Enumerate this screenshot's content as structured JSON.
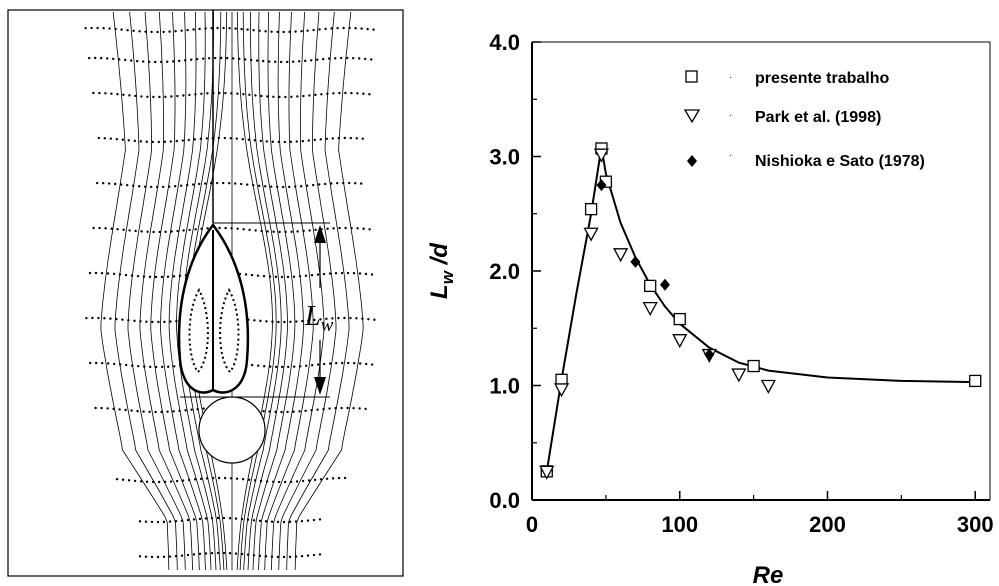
{
  "chart_data": [
    {
      "type": "diagram",
      "annotation": "L",
      "annotation_subscript": "w"
    },
    {
      "type": "scatter",
      "xlabel": "Re",
      "ylabel": "L",
      "ylabel_subscript": "w",
      "ylabel_suffix": " /d",
      "xlim": [
        0,
        310
      ],
      "ylim": [
        0,
        4.0
      ],
      "x_ticks": [
        0,
        100,
        200,
        300
      ],
      "x_tick_labels": [
        "0",
        "100",
        "200",
        "300"
      ],
      "y_ticks": [
        0,
        1,
        2,
        3,
        4
      ],
      "y_tick_labels": [
        "0.0",
        "1.0",
        "2.0",
        "3.0",
        "4.0"
      ],
      "grid": false,
      "legend_position": "top-right",
      "series": [
        {
          "name": "presente trabalho",
          "marker": "square-open",
          "x": [
            10,
            20,
            40,
            47,
            50,
            80,
            100,
            150,
            300
          ],
          "y": [
            0.25,
            1.05,
            2.54,
            3.07,
            2.78,
            1.87,
            1.58,
            1.17,
            1.04
          ]
        },
        {
          "name": "Park et al. (1998)",
          "marker": "triangle-down-open",
          "x": [
            10,
            20,
            40,
            47,
            60,
            80,
            100,
            120,
            140,
            160
          ],
          "y": [
            0.25,
            0.97,
            2.33,
            3.02,
            2.15,
            1.68,
            1.4,
            1.27,
            1.1,
            1.0
          ]
        },
        {
          "name": "Nishioka e Sato (1978)",
          "marker": "diamond-filled",
          "x": [
            47,
            70,
            90,
            120
          ],
          "y": [
            2.75,
            2.08,
            1.88,
            1.27
          ]
        }
      ],
      "fit_curve": {
        "x": [
          10,
          20,
          30,
          40,
          47,
          50,
          60,
          70,
          80,
          90,
          100,
          120,
          140,
          160,
          200,
          250,
          300
        ],
        "y": [
          0.25,
          1.05,
          1.8,
          2.5,
          3.08,
          2.85,
          2.42,
          2.12,
          1.88,
          1.69,
          1.54,
          1.33,
          1.2,
          1.13,
          1.07,
          1.04,
          1.03
        ]
      }
    }
  ]
}
